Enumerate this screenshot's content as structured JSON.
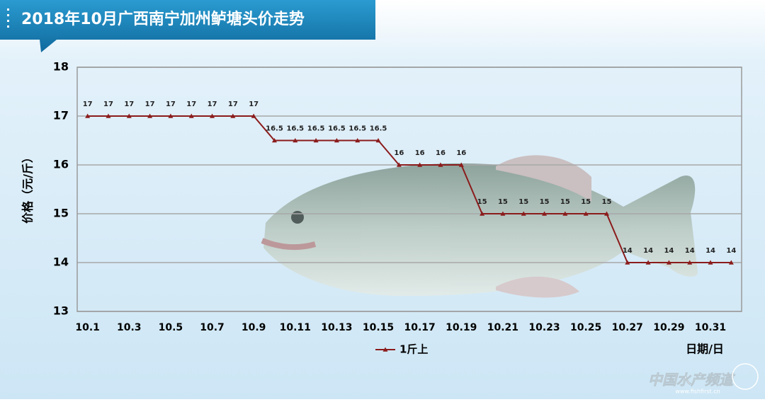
{
  "chart_data": {
    "type": "line",
    "title": "2018年10月广西南宁加州鲈塘头价走势",
    "y_label": "价格（元/斤）",
    "x_label": "日期/日",
    "categories": [
      "10.1",
      null,
      "10.3",
      null,
      "10.5",
      null,
      "10.7",
      null,
      "10.9",
      null,
      "10.11",
      null,
      "10.13",
      null,
      "10.15",
      null,
      "10.17",
      null,
      "10.19",
      null,
      "10.21",
      null,
      "10.23",
      null,
      "10.25",
      null,
      "10.27",
      null,
      "10.29",
      null,
      "10.31",
      null
    ],
    "series": [
      {
        "name": "1斤上",
        "color": "#8b1c1c",
        "values": [
          17,
          17,
          17,
          17,
          17,
          17,
          17,
          17,
          17,
          16.5,
          16.5,
          16.5,
          16.5,
          16.5,
          16.5,
          16,
          16,
          16,
          16,
          15,
          15,
          15,
          15,
          15,
          15,
          15,
          14,
          14,
          14,
          14,
          14,
          14
        ]
      }
    ],
    "ylim": [
      13,
      18
    ],
    "yticks": [
      13,
      14,
      15,
      16,
      17,
      18
    ],
    "grid": true,
    "legend": "bottom",
    "watermark": "中国水产频道",
    "watermark_url": "www.fishfirst.cn"
  }
}
